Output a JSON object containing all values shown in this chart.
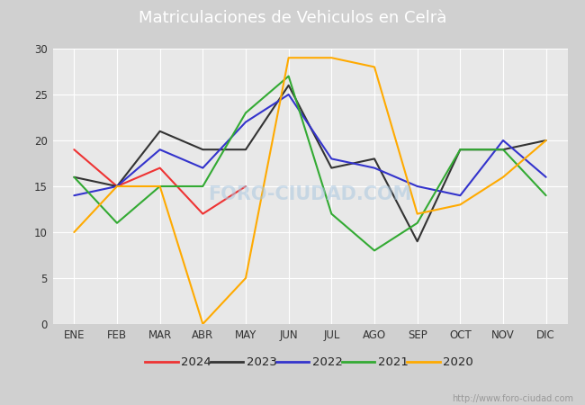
{
  "title": "Matriculaciones de Vehiculos en Celrà",
  "months": [
    "ENE",
    "FEB",
    "MAR",
    "ABR",
    "MAY",
    "JUN",
    "JUL",
    "AGO",
    "SEP",
    "OCT",
    "NOV",
    "DIC"
  ],
  "series": {
    "2024": {
      "color": "#ee3333",
      "data": [
        19,
        15,
        17,
        12,
        15,
        null,
        null,
        null,
        null,
        null,
        null,
        null
      ]
    },
    "2023": {
      "color": "#333333",
      "data": [
        16,
        15,
        21,
        19,
        19,
        26,
        17,
        18,
        9,
        19,
        19,
        20
      ]
    },
    "2022": {
      "color": "#3333cc",
      "data": [
        14,
        15,
        19,
        17,
        22,
        25,
        18,
        17,
        15,
        14,
        20,
        16
      ]
    },
    "2021": {
      "color": "#33aa33",
      "data": [
        16,
        11,
        15,
        15,
        23,
        27,
        12,
        8,
        11,
        19,
        19,
        14
      ]
    },
    "2020": {
      "color": "#ffaa00",
      "data": [
        10,
        15,
        15,
        0,
        5,
        29,
        29,
        28,
        12,
        13,
        16,
        20
      ]
    }
  },
  "ylim": [
    0,
    30
  ],
  "yticks": [
    0,
    5,
    10,
    15,
    20,
    25,
    30
  ],
  "outer_bg": "#d0d0d0",
  "plot_bg_color": "#e8e8e8",
  "header_color": "#5599cc",
  "title_color": "white",
  "title_fontsize": 13,
  "watermark": "http://www.foro-ciudad.com",
  "legend_order": [
    "2024",
    "2023",
    "2022",
    "2021",
    "2020"
  ],
  "grid_color": "#ffffff",
  "line_width": 1.5
}
